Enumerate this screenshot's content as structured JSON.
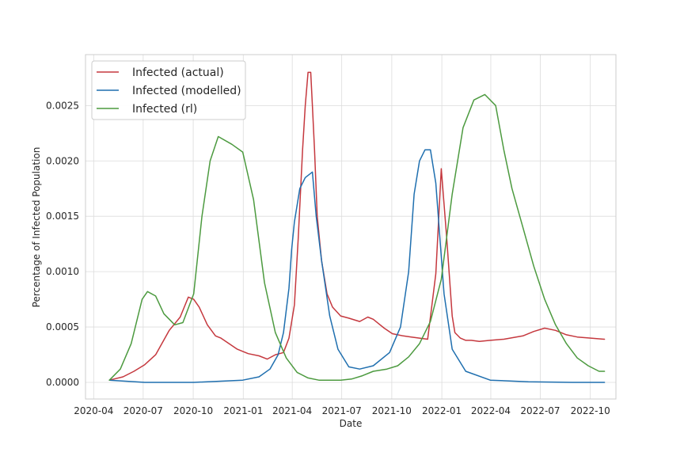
{
  "chart_data": {
    "type": "line",
    "xlabel": "Date",
    "ylabel": "Percentage of Infected Population",
    "xlim": [
      "2020-03-17",
      "2022-11-17"
    ],
    "ylim": [
      -0.00015,
      0.00296
    ],
    "grid": true,
    "legend_position": "top-left",
    "x_ticks": [
      {
        "date": "2020-04-01",
        "label": "2020-04"
      },
      {
        "date": "2020-07-01",
        "label": "2020-07"
      },
      {
        "date": "2020-10-01",
        "label": "2020-10"
      },
      {
        "date": "2021-01-01",
        "label": "2021-01"
      },
      {
        "date": "2021-04-01",
        "label": "2021-04"
      },
      {
        "date": "2021-07-01",
        "label": "2021-07"
      },
      {
        "date": "2021-10-01",
        "label": "2021-10"
      },
      {
        "date": "2022-01-01",
        "label": "2022-01"
      },
      {
        "date": "2022-04-01",
        "label": "2022-04"
      },
      {
        "date": "2022-07-01",
        "label": "2022-07"
      },
      {
        "date": "2022-10-01",
        "label": "2022-10"
      }
    ],
    "y_ticks": [
      {
        "value": 0,
        "label": "0.0000"
      },
      {
        "value": 0.0005,
        "label": "0.0005"
      },
      {
        "value": 0.001,
        "label": "0.0010"
      },
      {
        "value": 0.0015,
        "label": "0.0015"
      },
      {
        "value": 0.002,
        "label": "0.0020"
      },
      {
        "value": 0.0025,
        "label": "0.0025"
      }
    ],
    "series": [
      {
        "name": "Infected (actual)",
        "color": "#c5383e",
        "x": [
          "2020-04-30",
          "2020-05-25",
          "2020-06-14",
          "2020-07-04",
          "2020-07-24",
          "2020-08-18",
          "2020-09-07",
          "2020-09-22",
          "2020-10-02",
          "2020-10-12",
          "2020-10-27",
          "2020-11-11",
          "2020-11-21",
          "2020-12-06",
          "2020-12-21",
          "2021-01-10",
          "2021-01-30",
          "2021-02-14",
          "2021-03-01",
          "2021-03-16",
          "2021-03-26",
          "2021-04-05",
          "2021-04-12",
          "2021-04-20",
          "2021-04-25",
          "2021-04-30",
          "2021-05-05",
          "2021-05-08",
          "2021-05-12",
          "2021-05-17",
          "2021-05-25",
          "2021-06-04",
          "2021-06-14",
          "2021-06-29",
          "2021-07-14",
          "2021-08-03",
          "2021-08-18",
          "2021-08-28",
          "2021-09-07",
          "2021-09-17",
          "2021-10-02",
          "2021-10-22",
          "2021-11-06",
          "2021-11-21",
          "2021-12-06",
          "2021-12-21",
          "2021-12-31",
          "2022-01-10",
          "2022-01-20",
          "2022-01-25",
          "2022-02-04",
          "2022-02-14",
          "2022-02-24",
          "2022-03-11",
          "2022-03-31",
          "2022-04-25",
          "2022-05-30",
          "2022-06-19",
          "2022-07-09",
          "2022-07-29",
          "2022-08-18",
          "2022-09-07",
          "2022-10-02",
          "2022-10-27"
        ],
        "y": [
          2e-05,
          5e-05,
          0.0001,
          0.00016,
          0.00025,
          0.00047,
          0.00059,
          0.00077,
          0.00075,
          0.00068,
          0.00052,
          0.00042,
          0.0004,
          0.00035,
          0.0003,
          0.00026,
          0.00024,
          0.00021,
          0.00025,
          0.00027,
          0.0004,
          0.0007,
          0.0013,
          0.0021,
          0.0025,
          0.0028,
          0.0028,
          0.0025,
          0.0021,
          0.0015,
          0.0011,
          0.0008,
          0.00068,
          0.0006,
          0.00058,
          0.00055,
          0.00059,
          0.00057,
          0.00053,
          0.00049,
          0.00044,
          0.00042,
          0.00041,
          0.0004,
          0.00039,
          0.00098,
          0.00193,
          0.0013,
          0.0006,
          0.00045,
          0.0004,
          0.00038,
          0.00038,
          0.00037,
          0.00038,
          0.00039,
          0.00042,
          0.00046,
          0.00049,
          0.00047,
          0.00043,
          0.00041,
          0.0004,
          0.00039
        ]
      },
      {
        "name": "Infected (modelled)",
        "color": "#1f6faf",
        "x": [
          "2020-04-30",
          "2020-07-04",
          "2020-10-02",
          "2020-12-31",
          "2021-01-30",
          "2021-02-19",
          "2021-03-06",
          "2021-03-16",
          "2021-03-26",
          "2021-03-31",
          "2021-04-05",
          "2021-04-15",
          "2021-04-25",
          "2021-05-08",
          "2021-05-15",
          "2021-05-25",
          "2021-06-09",
          "2021-06-24",
          "2021-07-14",
          "2021-08-03",
          "2021-08-28",
          "2021-09-27",
          "2021-10-17",
          "2021-11-01",
          "2021-11-11",
          "2021-11-21",
          "2021-12-01",
          "2021-12-11",
          "2021-12-21",
          "2022-01-05",
          "2022-01-20",
          "2022-02-14",
          "2022-03-31",
          "2022-06-09",
          "2022-08-28",
          "2022-10-27"
        ],
        "y": [
          2e-05,
          0,
          0,
          2e-05,
          5e-05,
          0.00012,
          0.00025,
          0.00045,
          0.00085,
          0.0012,
          0.00145,
          0.00175,
          0.00185,
          0.0019,
          0.0015,
          0.0011,
          0.0006,
          0.0003,
          0.00014,
          0.00012,
          0.00015,
          0.00027,
          0.0005,
          0.001,
          0.0017,
          0.002,
          0.0021,
          0.0021,
          0.0018,
          0.0008,
          0.0003,
          0.0001,
          2e-05,
          5e-06,
          0,
          0
        ]
      },
      {
        "name": "Infected (rl)",
        "color": "#4c9a3f",
        "x": [
          "2020-04-30",
          "2020-05-20",
          "2020-06-09",
          "2020-06-29",
          "2020-07-09",
          "2020-07-24",
          "2020-08-08",
          "2020-08-28",
          "2020-09-12",
          "2020-10-02",
          "2020-10-17",
          "2020-11-01",
          "2020-11-16",
          "2020-12-11",
          "2020-12-31",
          "2021-01-20",
          "2021-02-09",
          "2021-03-01",
          "2021-03-21",
          "2021-04-10",
          "2021-04-30",
          "2021-05-20",
          "2021-06-09",
          "2021-06-29",
          "2021-07-19",
          "2021-08-08",
          "2021-08-28",
          "2021-09-22",
          "2021-10-12",
          "2021-11-01",
          "2021-11-21",
          "2021-12-11",
          "2021-12-31",
          "2022-01-20",
          "2022-02-09",
          "2022-03-01",
          "2022-03-21",
          "2022-04-10",
          "2022-04-25",
          "2022-05-10",
          "2022-05-30",
          "2022-06-19",
          "2022-07-09",
          "2022-07-29",
          "2022-08-18",
          "2022-09-07",
          "2022-09-27",
          "2022-10-17",
          "2022-10-27"
        ],
        "y": [
          2e-05,
          0.00012,
          0.00035,
          0.00075,
          0.00082,
          0.00078,
          0.00062,
          0.00052,
          0.00054,
          0.0008,
          0.0015,
          0.002,
          0.00222,
          0.00215,
          0.00208,
          0.00165,
          0.0009,
          0.00045,
          0.00022,
          9e-05,
          4e-05,
          2e-05,
          2e-05,
          2e-05,
          3e-05,
          6e-05,
          0.0001,
          0.00012,
          0.00015,
          0.00023,
          0.00035,
          0.00055,
          0.00093,
          0.0017,
          0.0023,
          0.00255,
          0.0026,
          0.0025,
          0.0021,
          0.00175,
          0.0014,
          0.00105,
          0.00075,
          0.00052,
          0.00035,
          0.00022,
          0.00015,
          0.0001,
          0.0001
        ]
      }
    ]
  }
}
